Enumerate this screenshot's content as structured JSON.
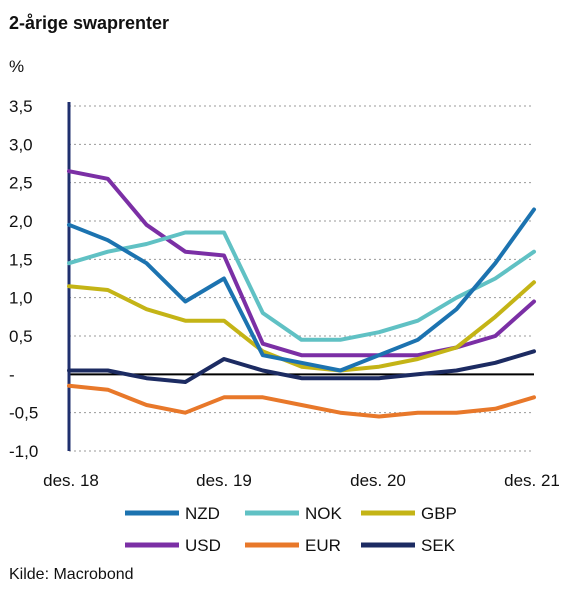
{
  "title": "2-årige swaprenter",
  "unit": "%",
  "source": "Kilde: Macrobond",
  "chart_data": {
    "type": "line",
    "title": "2-årige swaprenter",
    "xlabel": "",
    "ylabel": "%",
    "x": [
      "des. 18",
      "mar. 19",
      "jun. 19",
      "sep. 19",
      "des. 19",
      "mar. 20",
      "jun. 20",
      "sep. 20",
      "des. 20",
      "mar. 21",
      "jun. 21",
      "sep. 21",
      "des. 21"
    ],
    "x_ticks": [
      "des. 18",
      "des. 19",
      "des. 20",
      "des. 21"
    ],
    "y_ticks": [
      "3,5",
      "3,0",
      "2,5",
      "2,0",
      "1,5",
      "1,0",
      "0,5",
      "-",
      "-0,5",
      "-1,0"
    ],
    "ylim": [
      -1.0,
      3.5
    ],
    "grid": true,
    "legend_position": "bottom",
    "series": [
      {
        "name": "NZD",
        "color": "#1c73b0",
        "values": [
          1.95,
          1.75,
          1.45,
          0.95,
          1.25,
          0.25,
          0.15,
          0.05,
          0.25,
          0.45,
          0.85,
          1.45,
          2.15
        ]
      },
      {
        "name": "NOK",
        "color": "#60c1c4",
        "values": [
          1.45,
          1.6,
          1.7,
          1.85,
          1.85,
          0.8,
          0.45,
          0.45,
          0.55,
          0.7,
          1.0,
          1.25,
          1.6
        ]
      },
      {
        "name": "GBP",
        "color": "#c4b416",
        "values": [
          1.15,
          1.1,
          0.85,
          0.7,
          0.7,
          0.3,
          0.1,
          0.05,
          0.1,
          0.2,
          0.35,
          0.75,
          1.2
        ]
      },
      {
        "name": "USD",
        "color": "#7b2fa5",
        "values": [
          2.65,
          2.55,
          1.95,
          1.6,
          1.55,
          0.4,
          0.25,
          0.25,
          0.25,
          0.25,
          0.35,
          0.5,
          0.95
        ]
      },
      {
        "name": "EUR",
        "color": "#e8782a",
        "values": [
          -0.15,
          -0.2,
          -0.4,
          -0.5,
          -0.3,
          -0.3,
          -0.4,
          -0.5,
          -0.55,
          -0.5,
          -0.5,
          -0.45,
          -0.3
        ]
      },
      {
        "name": "SEK",
        "color": "#1c2b62",
        "values": [
          0.05,
          0.05,
          -0.05,
          -0.1,
          0.2,
          0.05,
          -0.05,
          -0.05,
          -0.05,
          0.0,
          0.05,
          0.15,
          0.3
        ]
      }
    ]
  }
}
